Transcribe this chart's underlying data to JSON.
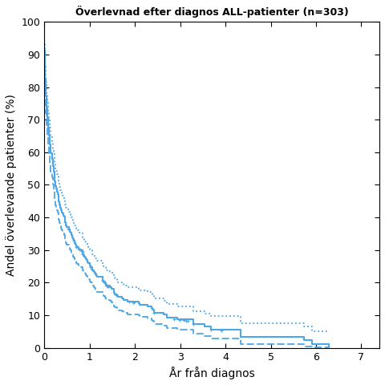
{
  "title": "Överlevnad efter diagnos ALL-patienter (n=303)",
  "xlabel": "År från diagnos",
  "ylabel": "Andel överlevande patienter (%)",
  "xlim": [
    0,
    7.4
  ],
  "ylim": [
    0,
    100
  ],
  "xticks": [
    0,
    1,
    2,
    3,
    4,
    5,
    6,
    7
  ],
  "yticks": [
    0,
    10,
    20,
    30,
    40,
    50,
    60,
    70,
    80,
    90,
    100
  ],
  "color": "#4da6e8",
  "background_color": "#ffffff",
  "figsize": [
    4.8,
    4.8
  ],
  "dpi": 100
}
